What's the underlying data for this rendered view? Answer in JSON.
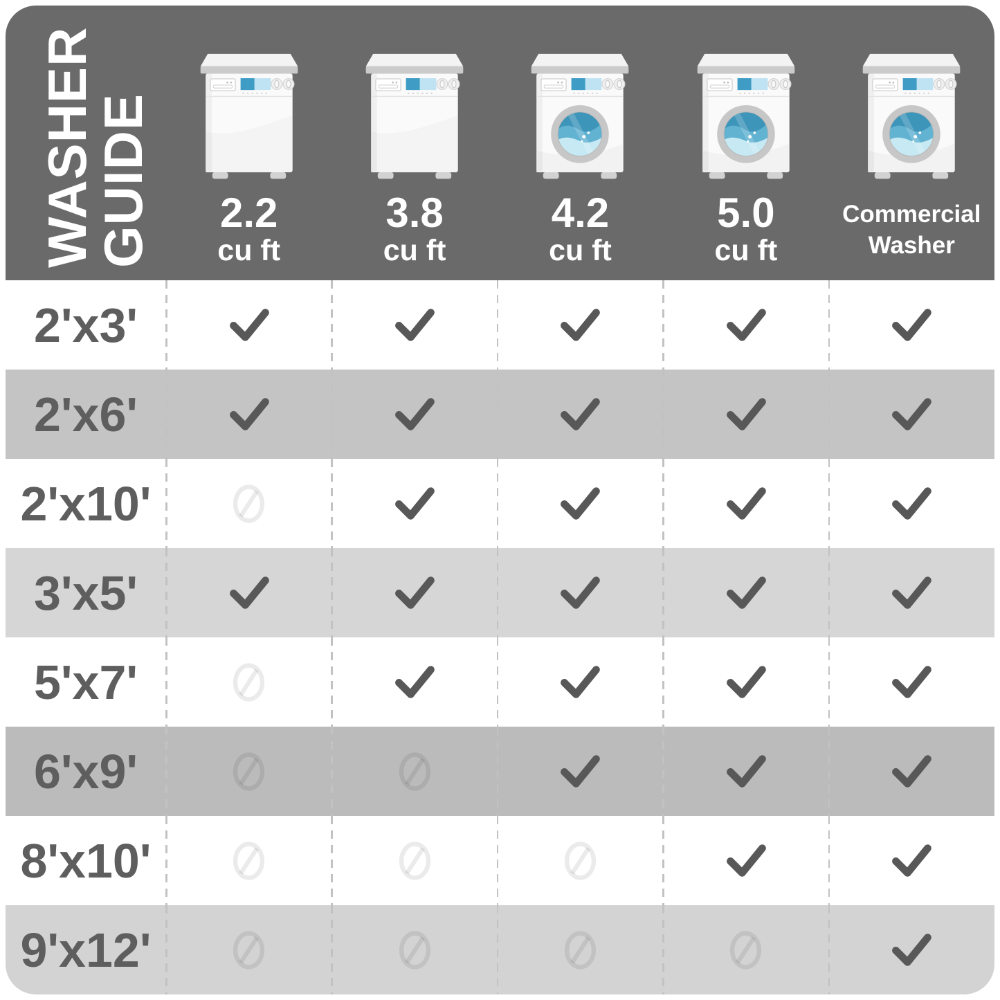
{
  "chart_data": {
    "type": "table",
    "title": "WASHER GUIDE",
    "title_lines": [
      "WASHER",
      "GUIDE"
    ],
    "columns": [
      {
        "icon": "top-load-washer-icon",
        "size": "2.2",
        "unit": "cu ft"
      },
      {
        "icon": "top-load-washer-icon",
        "size": "3.8",
        "unit": "cu ft"
      },
      {
        "icon": "front-load-washer-icon",
        "size": "4.2",
        "unit": "cu ft"
      },
      {
        "icon": "front-load-washer-icon",
        "size": "5.0",
        "unit": "cu ft"
      },
      {
        "icon": "front-load-washer-icon",
        "label_line1": "Commercial",
        "label_line2": "Washer"
      }
    ],
    "rows": [
      {
        "rug_size": "2'x3'",
        "fits": [
          "check",
          "check",
          "check",
          "check",
          "check"
        ]
      },
      {
        "rug_size": "2'x6'",
        "fits": [
          "check",
          "check",
          "check",
          "check",
          "check"
        ]
      },
      {
        "rug_size": "2'x10'",
        "fits": [
          "no",
          "check",
          "check",
          "check",
          "check"
        ]
      },
      {
        "rug_size": "3'x5'",
        "fits": [
          "check",
          "check",
          "check",
          "check",
          "check"
        ]
      },
      {
        "rug_size": "5'x7'",
        "fits": [
          "no",
          "check",
          "check",
          "check",
          "check"
        ]
      },
      {
        "rug_size": "6'x9'",
        "fits": [
          "no",
          "no",
          "check",
          "check",
          "check"
        ]
      },
      {
        "rug_size": "8'x10'",
        "fits": [
          "no",
          "no",
          "no",
          "check",
          "check"
        ]
      },
      {
        "rug_size": "9'x12'",
        "fits": [
          "no",
          "no",
          "no",
          "no",
          "check"
        ]
      }
    ]
  },
  "colors": {
    "header_bg": "#6a6a6a",
    "title_text": "#ffffff",
    "row_label_text": "#5e5e5e",
    "check": "#585858",
    "no_icon": "rgba(0,0,0,0.08)",
    "dashed_line": "#c2c2c2",
    "row_backgrounds": [
      "#ffffff",
      "#c4c4c4",
      "#ffffff",
      "#d6d6d6",
      "#ffffff",
      "#bbbbbb",
      "#ffffff",
      "#d3d3d3"
    ],
    "display_blue_dark": "#3f9cc4",
    "display_blue_light": "#bfe3f2",
    "water_dark": "#3e95ba",
    "water_mid": "#62b2d1",
    "water_light": "#c6e9f3"
  }
}
